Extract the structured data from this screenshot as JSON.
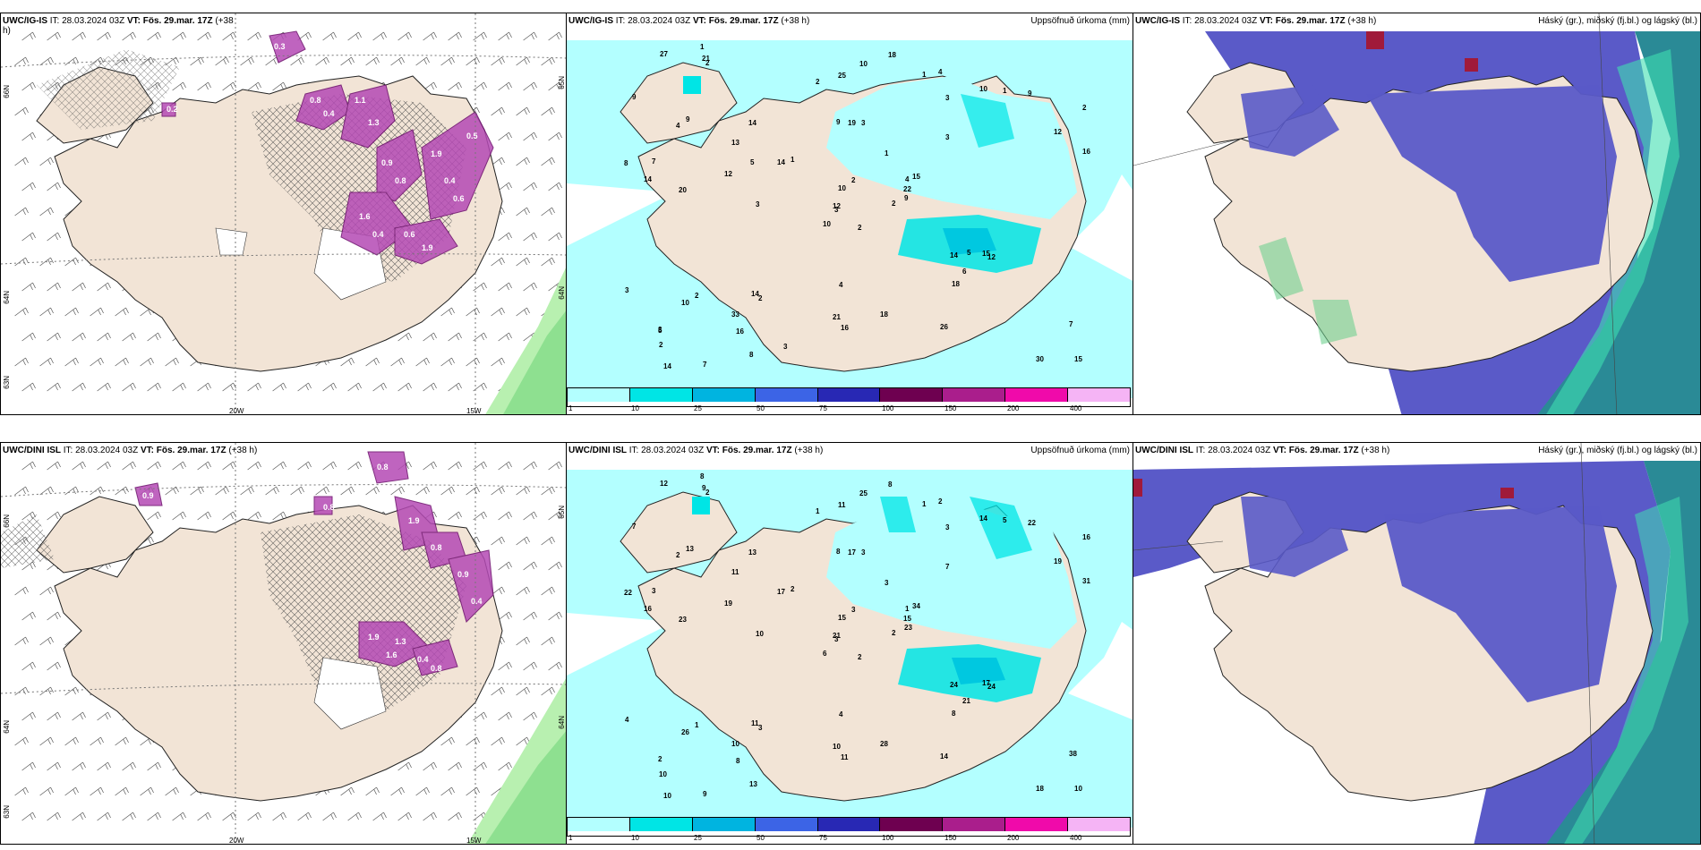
{
  "rows": [
    {
      "left": {
        "model": "UWC/IG-IS",
        "it_label": "IT:",
        "it_value": "28.03.2024 03Z",
        "vt_label": "VT: Fös. 29.mar. 17Z",
        "lead": "(+38",
        "lead2": "h)",
        "lon_labels": [
          "20W",
          "15W"
        ],
        "lat_labels": [
          "66N",
          "64N",
          "63N"
        ],
        "lat_labels_right": [
          "65N",
          "64N"
        ]
      },
      "mid": {
        "model": "UWC/IG-IS",
        "it_label": "IT:",
        "it_value": "28.03.2024 03Z",
        "vt_label": "VT: Fös. 29.mar. 17Z",
        "lead": "(+38 h)",
        "right_title": "Uppsöfnuð úrkoma (mm)",
        "values": [
          "2",
          "4",
          "3",
          "3",
          "4",
          "2",
          "4",
          "3",
          "3",
          "2",
          "2",
          "15",
          "20",
          "2",
          "10",
          "3",
          "7",
          "9",
          "1",
          "2",
          "1",
          "2",
          "16",
          "19",
          "15",
          "12",
          "9",
          "25",
          "14",
          "14",
          "16",
          "12",
          "21",
          "10",
          "14",
          "10",
          "14",
          "30",
          "7",
          "15",
          "18",
          "14",
          "12",
          "18",
          "8",
          "8",
          "22",
          "14",
          "16",
          "9",
          "10",
          "12",
          "9",
          "6",
          "26",
          "33",
          "21",
          "27",
          "18",
          "9",
          "10",
          "3",
          "7",
          "13",
          "1",
          "1",
          "1",
          "2",
          "2",
          "3",
          "4",
          "3",
          "5",
          "5",
          "5"
        ]
      },
      "right": {
        "model": "UWC/IG-IS",
        "it_label": "IT:",
        "it_value": "28.03.2024 03Z",
        "vt_label": "VT: Fös. 29.mar. 17Z",
        "lead": "(+38 h)",
        "right_title": "Háský (gr.), miðský (fj.bl.) og lágský (bl.)"
      }
    },
    {
      "left": {
        "model": "UWC/DINI ISL",
        "it_label": "IT:",
        "it_value": "28.03.2024 03Z",
        "vt_label": "VT: Fös. 29.mar. 17Z",
        "lead": "(+38 h)",
        "lon_labels": [
          "20W",
          "15W"
        ],
        "lat_labels": [
          "66N",
          "64N",
          "63N"
        ],
        "lat_labels_right": [
          "65N",
          "64N"
        ]
      },
      "mid": {
        "model": "UWC/DINI ISL",
        "it_label": "IT:",
        "it_value": "28.03.2024 03Z",
        "vt_label": "VT: Fös. 29.mar. 17Z",
        "lead": "(+38 h)",
        "right_title": "Uppsöfnuð úrkoma (mm)",
        "values": [
          "2",
          "2",
          "3",
          "2",
          "1",
          "3",
          "2",
          "3",
          "3",
          "2",
          "2",
          "10",
          "23",
          "16",
          "6",
          "7",
          "9",
          "8",
          "3",
          "1",
          "2",
          "10",
          "8",
          "17",
          "34",
          "24",
          "13",
          "11",
          "16",
          "24",
          "31",
          "21",
          "10",
          "15",
          "13",
          "14",
          "11",
          "18",
          "38",
          "17",
          "8",
          "17",
          "19",
          "8",
          "13",
          "22",
          "15",
          "10",
          "11",
          "23",
          "26",
          "19",
          "7",
          "21",
          "14",
          "10",
          "9",
          "12",
          "28",
          "22",
          "25",
          "10",
          "3",
          "11",
          "5",
          "8",
          "1",
          "1",
          "3",
          "4",
          "4"
        ]
      },
      "right": {
        "model": "UWC/DINI ISL",
        "it_label": "IT:",
        "it_value": "28.03.2024 03Z",
        "vt_label": "VT: Fös. 29.mar. 17Z",
        "lead": "(+38 h)",
        "right_title": "Háský (gr.), miðský (fj.bl.) og lágský (bl.)"
      }
    }
  ],
  "colorbar": {
    "ticks": [
      "1",
      "10",
      "25",
      "50",
      "75",
      "100",
      "150",
      "200",
      "400"
    ],
    "colors": [
      "#b3ffff",
      "#00e5e5",
      "#00b4e0",
      "#3c64e6",
      "#2828b4",
      "#6e0050",
      "#aa1e8c",
      "#f00aaa",
      "#f5b4f5"
    ]
  },
  "snow_labels_top": [
    "0.3",
    "0.8",
    "0.4",
    "1.1",
    "1.3",
    "0.9",
    "0.8",
    "1.9",
    "0.4",
    "0.6",
    "1.6",
    "0.4",
    "0.6",
    "1.9",
    "0.2",
    "0.5"
  ],
  "snow_labels_bottom": [
    "0.8",
    "0.9",
    "1.9",
    "0.8",
    "0.9",
    "0.4",
    "1.9",
    "1.6",
    "0.4",
    "0.8",
    "1.3",
    "0.4",
    "0.8"
  ]
}
